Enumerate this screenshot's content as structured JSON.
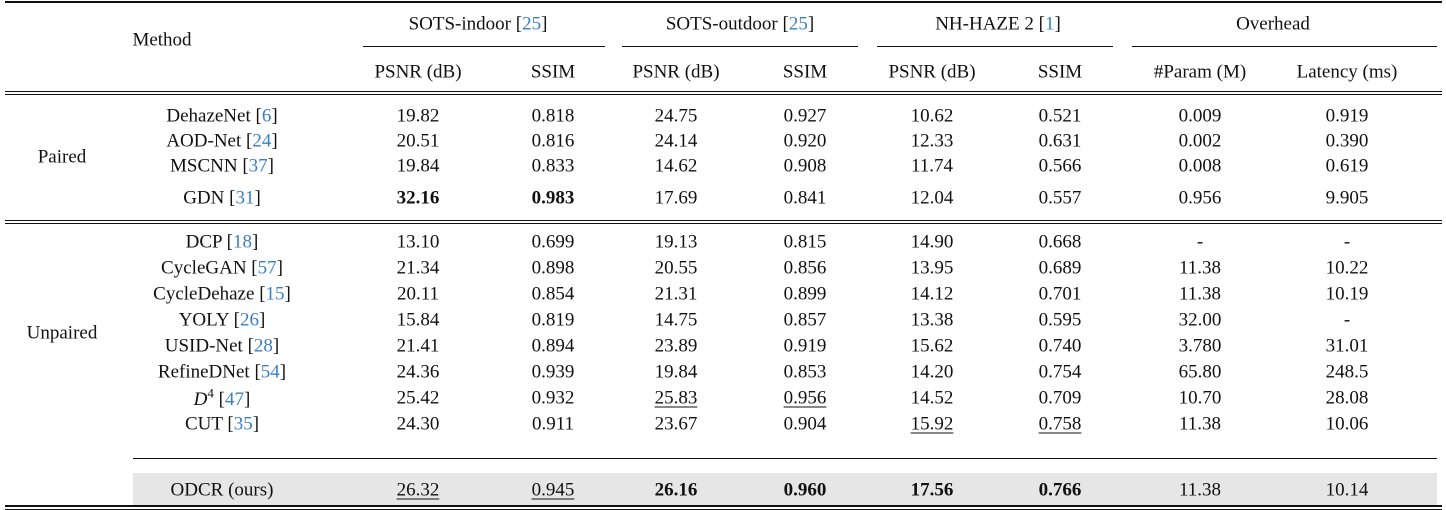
{
  "header": {
    "method": "Method",
    "groups": [
      {
        "name": "SOTS-indoor",
        "cite": "25"
      },
      {
        "name": "SOTS-outdoor",
        "cite": "25"
      },
      {
        "name": "NH-HAZE 2",
        "cite": "1"
      },
      {
        "name": "Overhead",
        "cite": ""
      }
    ],
    "subcolumns": [
      "PSNR (dB)",
      "SSIM",
      "PSNR (dB)",
      "SSIM",
      "PSNR (dB)",
      "SSIM",
      "#Param (M)",
      "Latency (ms)"
    ]
  },
  "sections": [
    {
      "label": "Paired",
      "rows": [
        {
          "method": "DehazeNet",
          "cite": "6",
          "values": [
            "19.82",
            "0.818",
            "24.75",
            "0.927",
            "10.62",
            "0.521",
            "0.009",
            "0.919"
          ],
          "bold": [],
          "underline": []
        },
        {
          "method": "AOD-Net",
          "cite": "24",
          "values": [
            "20.51",
            "0.816",
            "24.14",
            "0.920",
            "12.33",
            "0.631",
            "0.002",
            "0.390"
          ],
          "bold": [],
          "underline": []
        },
        {
          "method": "MSCNN",
          "cite": "37",
          "values": [
            "19.84",
            "0.833",
            "14.62",
            "0.908",
            "11.74",
            "0.566",
            "0.008",
            "0.619"
          ],
          "bold": [],
          "underline": []
        },
        {
          "method": "GDN",
          "cite": "31",
          "values": [
            "32.16",
            "0.983",
            "17.69",
            "0.841",
            "12.04",
            "0.557",
            "0.956",
            "9.905"
          ],
          "bold": [
            0,
            1
          ],
          "underline": []
        }
      ]
    },
    {
      "label": "Unpaired",
      "rows": [
        {
          "method": "DCP",
          "cite": "18",
          "values": [
            "13.10",
            "0.699",
            "19.13",
            "0.815",
            "14.90",
            "0.668",
            "-",
            "-"
          ],
          "bold": [],
          "underline": []
        },
        {
          "method": "CycleGAN",
          "cite": "57",
          "values": [
            "21.34",
            "0.898",
            "20.55",
            "0.856",
            "13.95",
            "0.689",
            "11.38",
            "10.22"
          ],
          "bold": [],
          "underline": []
        },
        {
          "method": "CycleDehaze",
          "cite": "15",
          "values": [
            "20.11",
            "0.854",
            "21.31",
            "0.899",
            "14.12",
            "0.701",
            "11.38",
            "10.19"
          ],
          "bold": [],
          "underline": []
        },
        {
          "method": "YOLY",
          "cite": "26",
          "values": [
            "15.84",
            "0.819",
            "14.75",
            "0.857",
            "13.38",
            "0.595",
            "32.00",
            "-"
          ],
          "bold": [],
          "underline": []
        },
        {
          "method": "USID-Net",
          "cite": "28",
          "values": [
            "21.41",
            "0.894",
            "23.89",
            "0.919",
            "15.62",
            "0.740",
            "3.780",
            "31.01"
          ],
          "bold": [],
          "underline": []
        },
        {
          "method": "RefineDNet",
          "cite": "54",
          "values": [
            "24.36",
            "0.939",
            "19.84",
            "0.853",
            "14.20",
            "0.754",
            "65.80",
            "248.5"
          ],
          "bold": [],
          "underline": []
        },
        {
          "method": "D",
          "method_sup": "4",
          "cite": "47",
          "values": [
            "25.42",
            "0.932",
            "25.83",
            "0.956",
            "14.52",
            "0.709",
            "10.70",
            "28.08"
          ],
          "bold": [],
          "underline": [
            2,
            3
          ]
        },
        {
          "method": "CUT",
          "cite": "35",
          "values": [
            "24.30",
            "0.911",
            "23.67",
            "0.904",
            "15.92",
            "0.758",
            "11.38",
            "10.06"
          ],
          "bold": [],
          "underline": [
            4,
            5
          ]
        }
      ]
    }
  ],
  "ours": {
    "method": "ODCR (ours)",
    "values": [
      "26.32",
      "0.945",
      "26.16",
      "0.960",
      "17.56",
      "0.766",
      "11.38",
      "10.14"
    ],
    "bold": [
      2,
      3,
      4,
      5
    ],
    "underline": [
      0,
      1
    ]
  },
  "colors": {
    "citation": "#3a7fc1",
    "highlight_row": "#e6e6e6"
  }
}
